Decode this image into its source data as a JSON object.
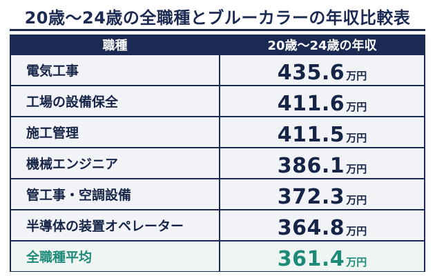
{
  "title": "20歳〜24歳の全職種とブルーカラーの年収比較表",
  "table": {
    "headers": [
      "職種",
      "20歳〜24歳の年収"
    ],
    "unit": "万円",
    "rows": [
      {
        "job": "電気工事",
        "income": "435.6"
      },
      {
        "job": "工場の設備保全",
        "income": "411.6"
      },
      {
        "job": "施工管理",
        "income": "411.5"
      },
      {
        "job": "機械エンジニア",
        "income": "386.1"
      },
      {
        "job": "管工事・空調設備",
        "income": "372.3"
      },
      {
        "job": "半導体の装置オペレーター",
        "income": "364.8"
      }
    ],
    "average": {
      "job": "全職種平均",
      "income": "361.4"
    }
  },
  "colors": {
    "navy": "#1b2a52",
    "row_bg": "#f1f3f6",
    "average_green": "#1e8a78"
  }
}
